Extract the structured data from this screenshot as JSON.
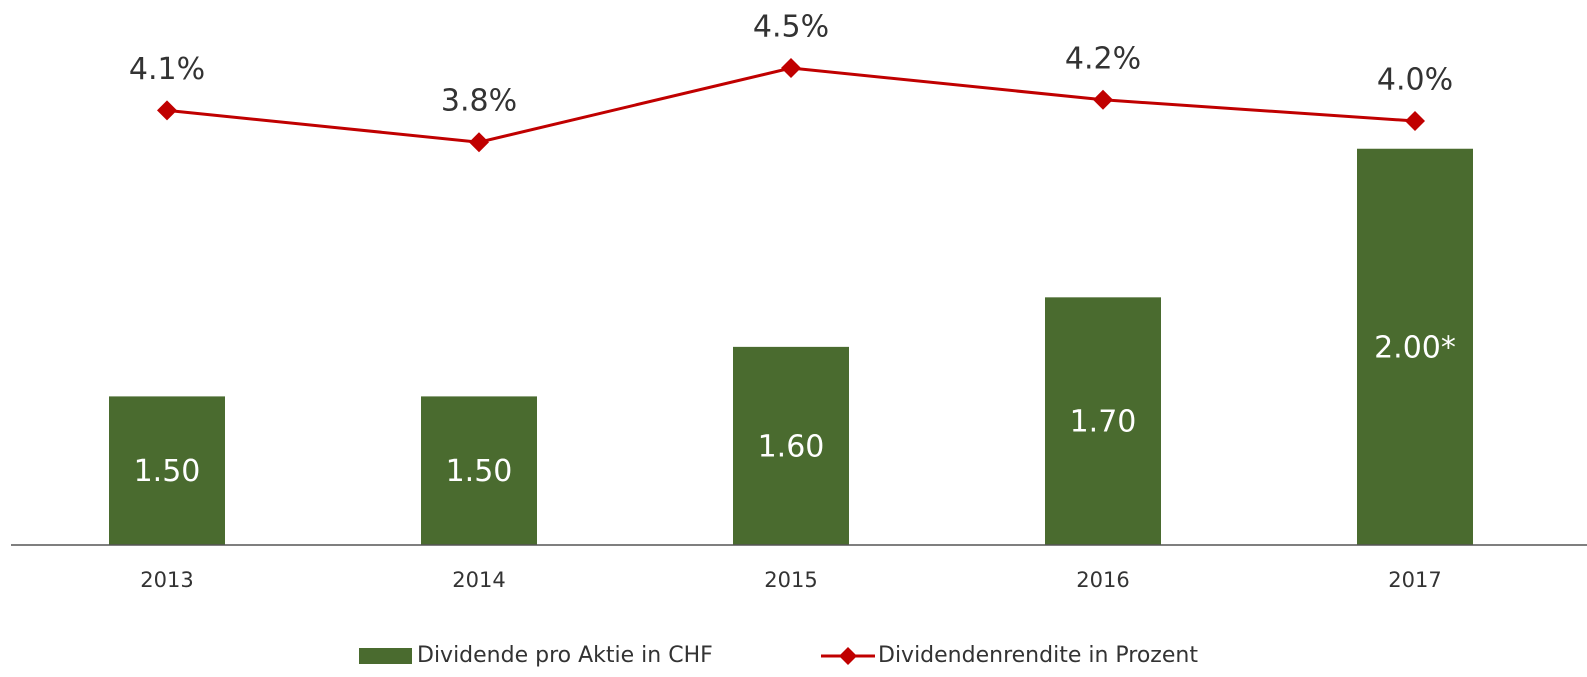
{
  "chart_data": {
    "type": "bar+line",
    "categories": [
      "2013",
      "2014",
      "2015",
      "2016",
      "2017"
    ],
    "series": [
      {
        "name": "Dividende pro Aktie in CHF",
        "type": "bar",
        "color": "#4a6b2f",
        "values": [
          1.5,
          1.5,
          1.6,
          1.7,
          2.0
        ],
        "value_labels": [
          "1.50",
          "1.50",
          "1.60",
          "1.70",
          "2.00*"
        ]
      },
      {
        "name": "Dividendenrendite in Prozent",
        "type": "line",
        "axis": "y2",
        "color": "#c00000",
        "values": [
          4.1,
          3.8,
          4.5,
          4.2,
          4.0
        ],
        "value_labels": [
          "4.1%",
          "3.8%",
          "4.5%",
          "4.2%",
          "4.0%"
        ]
      }
    ],
    "ylim": [
      1.2,
      2.27
    ],
    "y2lim": [
      0,
      5
    ],
    "legend": "bottom"
  }
}
